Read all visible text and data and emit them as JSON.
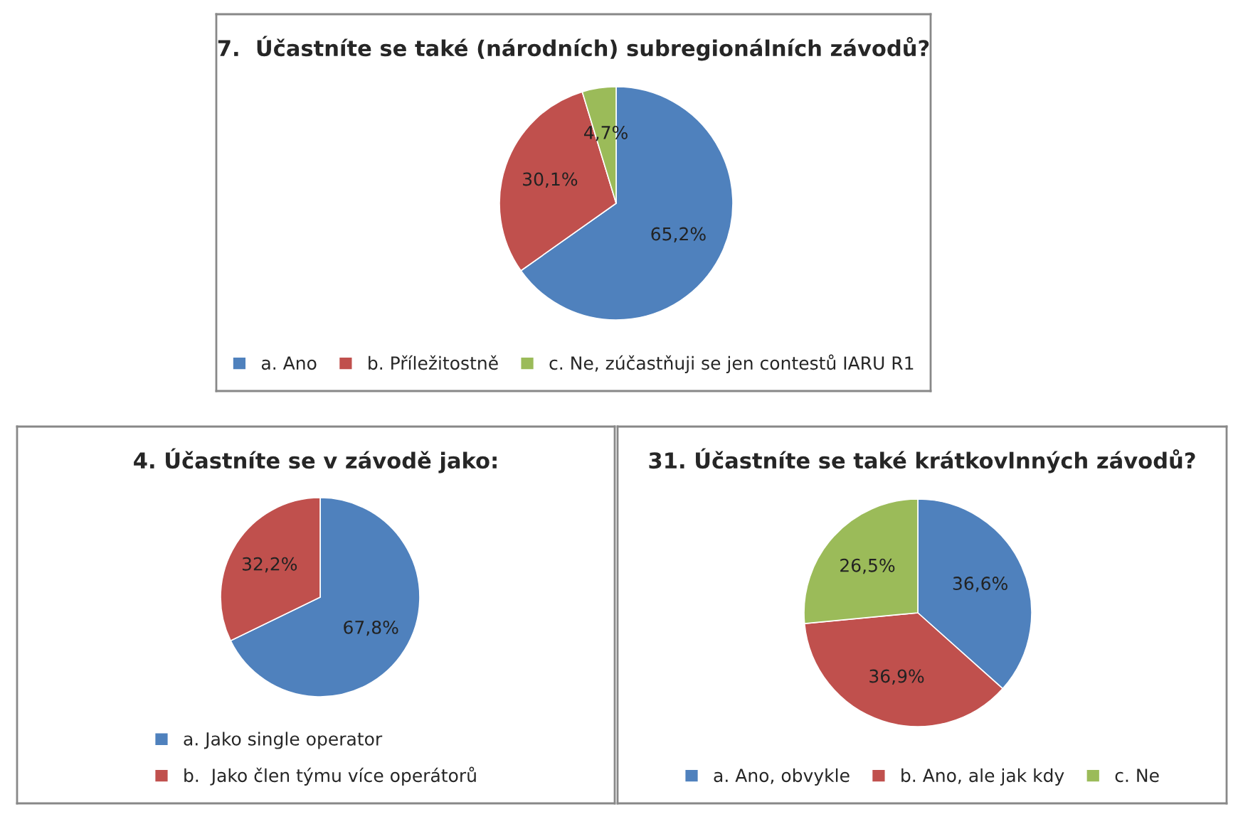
{
  "chart_data": [
    {
      "type": "pie",
      "title": "7.  Účastníte se také (národních) subregionálních závodů?",
      "categories": [
        "a. Ano",
        "b. Příležitostně",
        "c. Ne, zúčastňuji se jen contestů IARU R1"
      ],
      "values": [
        65.2,
        30.1,
        4.7
      ],
      "value_labels": [
        "65,2%",
        "30,1%",
        "4,7%"
      ],
      "colors": [
        "#4f81bd",
        "#c0504d",
        "#9bbb59"
      ],
      "legend": "bottom"
    },
    {
      "type": "pie",
      "title": "4. Účastníte se v závodě jako:",
      "categories": [
        "a. Jako single operator",
        "b.  Jako člen týmu více operátorů"
      ],
      "values": [
        67.8,
        32.2
      ],
      "value_labels": [
        "67,8%",
        "32,2%"
      ],
      "colors": [
        "#4f81bd",
        "#c0504d"
      ],
      "legend": "bottom"
    },
    {
      "type": "pie",
      "title": "31. Účastníte se také krátkovlnných závodů?",
      "categories": [
        "a. Ano, obvykle",
        "b. Ano, ale jak kdy",
        "c. Ne"
      ],
      "values": [
        36.6,
        36.9,
        26.5
      ],
      "value_labels": [
        "36,6%",
        "36,9%",
        "26,5%"
      ],
      "colors": [
        "#4f81bd",
        "#c0504d",
        "#9bbb59"
      ],
      "legend": "bottom"
    }
  ]
}
